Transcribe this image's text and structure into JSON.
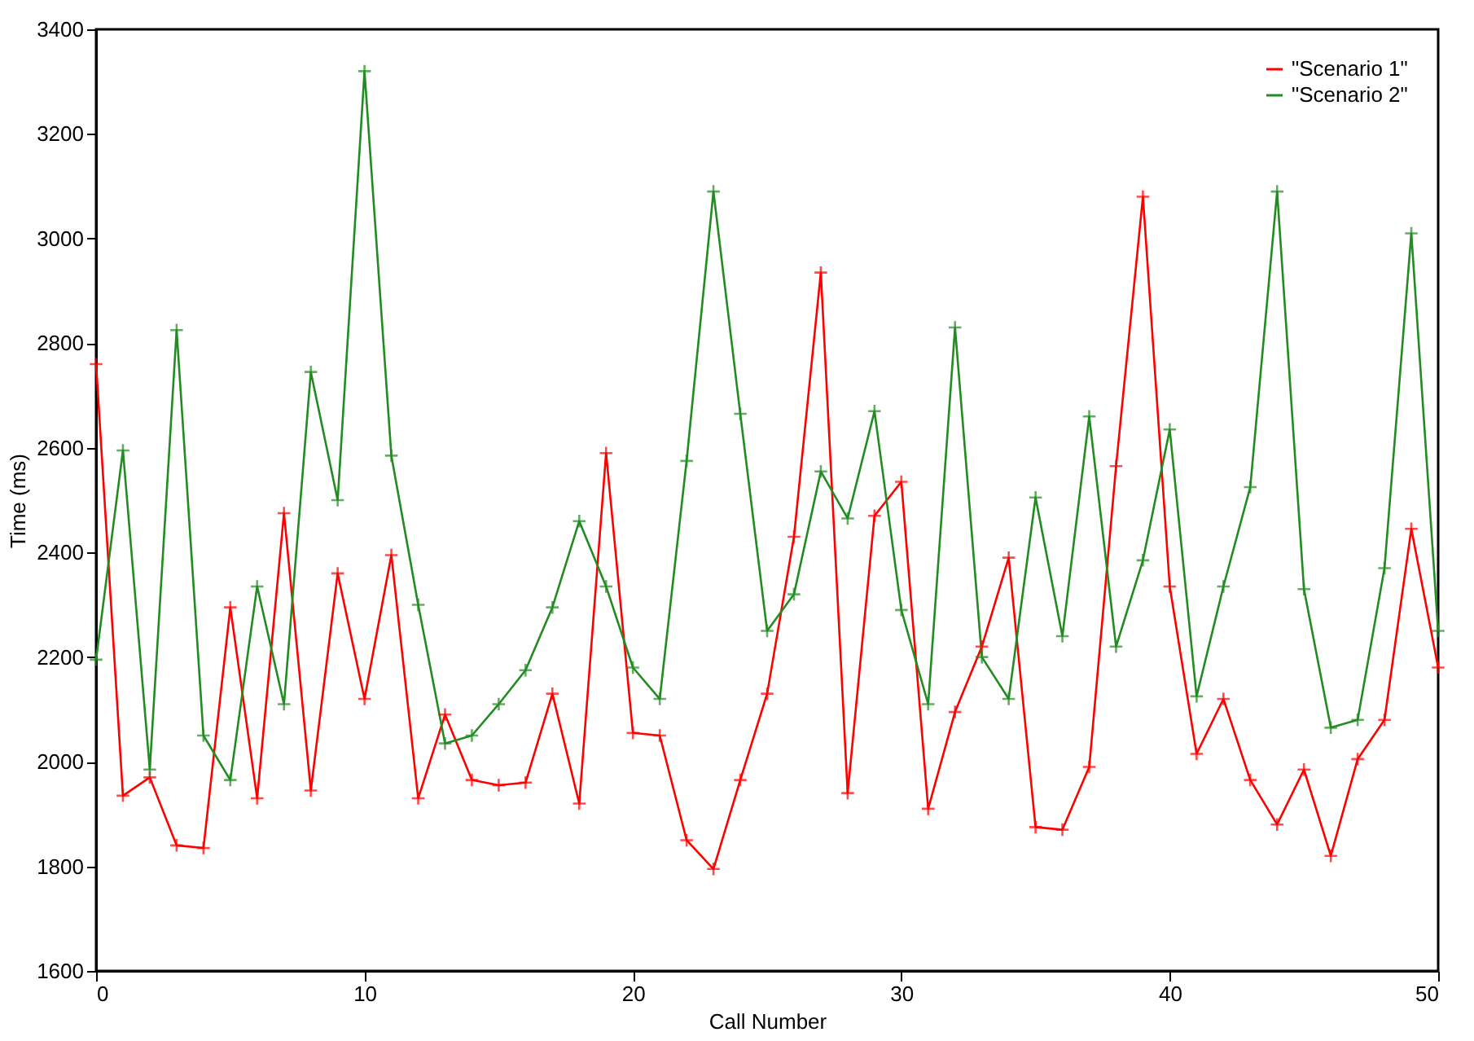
{
  "chart_data": {
    "type": "line",
    "xlabel": "Call Number",
    "ylabel": "Time (ms)",
    "xlim": [
      0,
      50
    ],
    "xticks": [
      0,
      10,
      20,
      30,
      40,
      50
    ],
    "ylim": [
      1600,
      3400
    ],
    "yticks": [
      1600,
      1800,
      2000,
      2200,
      2400,
      2600,
      2800,
      3000,
      3200,
      3400
    ],
    "grid": false,
    "legend": "top right",
    "marker": "cross",
    "line_style": "solid",
    "x": [
      0,
      1,
      2,
      3,
      4,
      5,
      6,
      7,
      8,
      9,
      10,
      11,
      12,
      13,
      14,
      15,
      16,
      17,
      18,
      19,
      20,
      21,
      22,
      23,
      24,
      25,
      26,
      27,
      28,
      29,
      30,
      31,
      32,
      33,
      34,
      35,
      36,
      37,
      38,
      39,
      40,
      41,
      42,
      43,
      44,
      45,
      46,
      47,
      48,
      49,
      50
    ],
    "series": [
      {
        "name": "\"Scenario 1\"",
        "color": "#ff0000",
        "values": [
          2760,
          1935,
          1970,
          1840,
          1835,
          2295,
          1930,
          2475,
          1945,
          2360,
          2120,
          2395,
          1930,
          2090,
          1965,
          1955,
          1960,
          2130,
          1920,
          2590,
          2055,
          2050,
          1850,
          1795,
          1965,
          2130,
          2430,
          2935,
          1940,
          2470,
          2535,
          1910,
          2095,
          2220,
          2390,
          1875,
          1870,
          1990,
          2565,
          3080,
          2335,
          2015,
          2120,
          1965,
          1880,
          1985,
          1820,
          2005,
          2080,
          2445,
          2180
        ]
      },
      {
        "name": "\"Scenario 2\"",
        "color": "#228b22",
        "values": [
          2195,
          2595,
          1985,
          2825,
          2050,
          1965,
          2335,
          2110,
          2745,
          2500,
          3320,
          2585,
          2300,
          2035,
          2050,
          2110,
          2175,
          2295,
          2460,
          2335,
          2180,
          2120,
          2575,
          3090,
          2665,
          2250,
          2320,
          2555,
          2465,
          2670,
          2290,
          2110,
          2830,
          2200,
          2120,
          2505,
          2240,
          2660,
          2220,
          2385,
          2635,
          2125,
          2335,
          2525,
          3090,
          2330,
          2065,
          2080,
          2370,
          3010,
          2250
        ]
      }
    ]
  }
}
